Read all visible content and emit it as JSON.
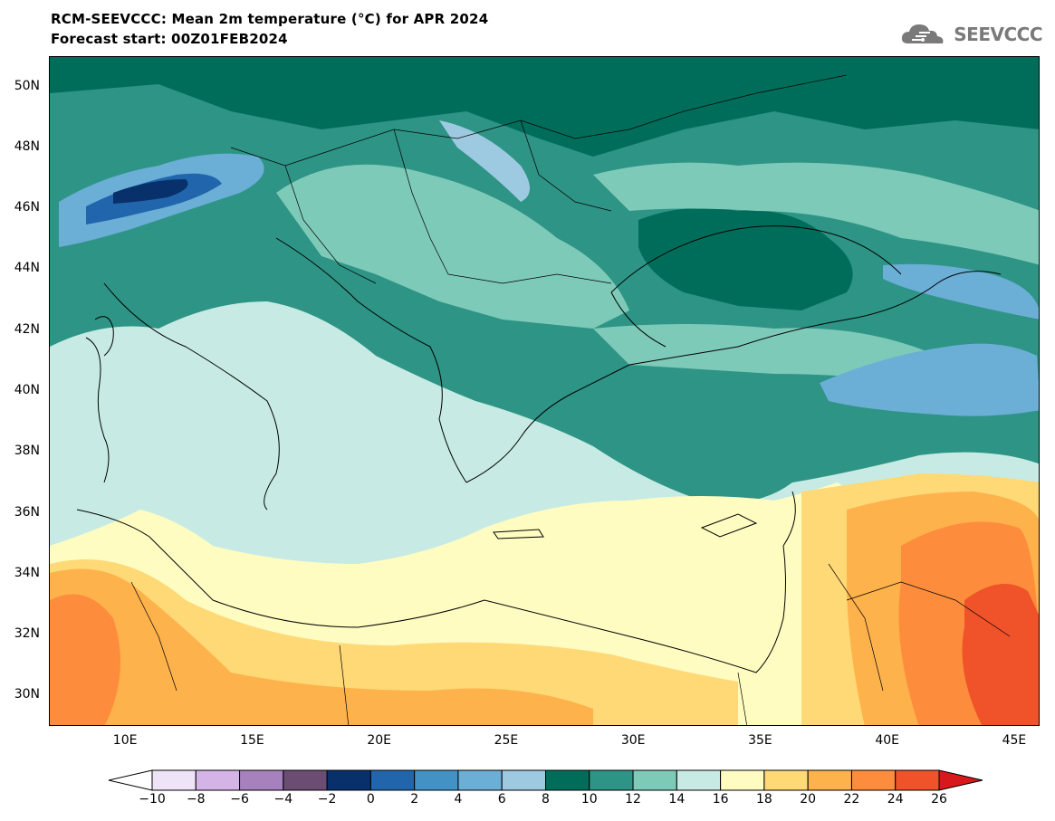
{
  "header": {
    "title_line1": "RCM-SEEVCCC: Mean 2m temperature (°C) for APR 2024",
    "title_line2": "Forecast start: 00Z01FEB2024",
    "logo_text": "SEEVCCC"
  },
  "map": {
    "lon_range": [
      7,
      46
    ],
    "lat_range": [
      29,
      51
    ],
    "lat_ticks": [
      "30N",
      "32N",
      "34N",
      "36N",
      "38N",
      "40N",
      "42N",
      "44N",
      "46N",
      "48N",
      "50N"
    ],
    "lat_values": [
      30,
      32,
      34,
      36,
      38,
      40,
      42,
      44,
      46,
      48,
      50
    ],
    "lon_ticks": [
      "10E",
      "15E",
      "20E",
      "25E",
      "30E",
      "35E",
      "40E",
      "45E"
    ],
    "lon_values": [
      10,
      15,
      20,
      25,
      30,
      35,
      40,
      45
    ]
  },
  "colorbar": {
    "labels": [
      "-10",
      "-8",
      "-6",
      "-4",
      "-2",
      "0",
      "2",
      "4",
      "6",
      "8",
      "10",
      "12",
      "14",
      "16",
      "18",
      "20",
      "22",
      "24",
      "26"
    ],
    "colors": [
      "#ffffff",
      "#efe3f7",
      "#d4b3e6",
      "#a681bd",
      "#6b4c73",
      "#08306b",
      "#2166ac",
      "#4292c6",
      "#6baed6",
      "#9ecae1",
      "#006d5b",
      "#2e9485",
      "#7ecab8",
      "#c7ebe4",
      "#fffcc2",
      "#fed976",
      "#feb24c",
      "#fd8d3c",
      "#f0522a",
      "#d7191c"
    ]
  }
}
